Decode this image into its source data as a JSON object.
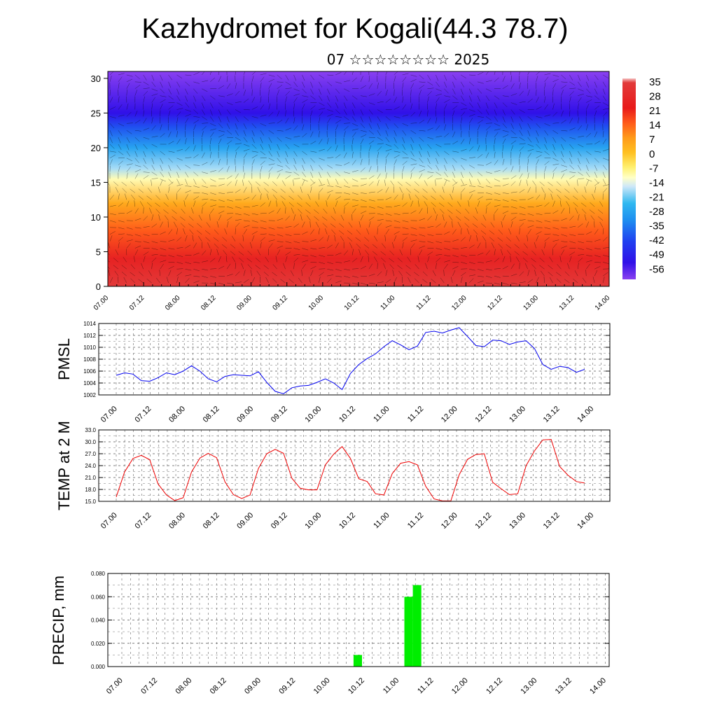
{
  "title": "Kazhydromet for Kogali(44.3 78.7)",
  "subtitle": "07 ☆☆☆☆☆☆☆☆ 2025",
  "time_labels": [
    "07.00",
    "07.12",
    "08.00",
    "08.12",
    "09.00",
    "09.12",
    "10.00",
    "10.12",
    "11.00",
    "11.12",
    "12.00",
    "12.12",
    "13.00",
    "13.12",
    "14.00"
  ],
  "chart_data": [
    {
      "type": "heatmap",
      "name": "cross-section",
      "x_labels_ref": "time_labels",
      "ylim": [
        0,
        31
      ],
      "y_ticks": [
        0,
        5,
        10,
        15,
        20,
        25,
        30
      ],
      "colorbar": {
        "labels": [
          "35",
          "28",
          "21",
          "14",
          "7",
          "0",
          "-7",
          "-14",
          "-21",
          "-28",
          "-35",
          "-42",
          "-49",
          "-56"
        ],
        "stops": [
          {
            "v": 35,
            "c": "#f4c2c2"
          },
          {
            "v": 33,
            "c": "#e23a3a"
          },
          {
            "v": 21,
            "c": "#e81a1a"
          },
          {
            "v": 14,
            "c": "#ff5a1a"
          },
          {
            "v": 7,
            "c": "#ff9a1a"
          },
          {
            "v": 0,
            "c": "#ffc020"
          },
          {
            "v": -7,
            "c": "#fff070"
          },
          {
            "v": -12,
            "c": "#ffffc8"
          },
          {
            "v": -16,
            "c": "#cfe8f8"
          },
          {
            "v": -24,
            "c": "#30b8f0"
          },
          {
            "v": -32,
            "c": "#1e8ef0"
          },
          {
            "v": -42,
            "c": "#2040f0"
          },
          {
            "v": -52,
            "c": "#3010e8"
          },
          {
            "v": -60,
            "c": "#8a40f0"
          }
        ]
      },
      "field_profile": [
        {
          "level": 0,
          "value": 33
        },
        {
          "level": 4,
          "value": 24
        },
        {
          "level": 8,
          "value": 14
        },
        {
          "level": 12,
          "value": 4
        },
        {
          "level": 15.5,
          "value": -11
        },
        {
          "level": 17,
          "value": -18
        },
        {
          "level": 20,
          "value": -28
        },
        {
          "level": 23,
          "value": -40
        },
        {
          "level": 25,
          "value": -52
        },
        {
          "level": 28,
          "value": -56
        },
        {
          "level": 31,
          "value": -60
        }
      ]
    },
    {
      "type": "line",
      "name": "pmsl",
      "ylabel": "PMSL",
      "ylim": [
        1002,
        1014
      ],
      "y_ticks": [
        1002,
        1004,
        1006,
        1008,
        1010,
        1012,
        1014
      ],
      "color": "#0000ee",
      "values": [
        1005.3,
        1005.7,
        1005.5,
        1004.4,
        1004.3,
        1004.9,
        1005.7,
        1005.4,
        1006.0,
        1006.9,
        1006.0,
        1004.7,
        1004.2,
        1005.1,
        1005.4,
        1005.3,
        1005.2,
        1005.9,
        1004.1,
        1002.6,
        1002.2,
        1003.2,
        1003.5,
        1003.6,
        1004.1,
        1004.7,
        1004.0,
        1002.9,
        1005.6,
        1007.1,
        1008.1,
        1008.9,
        1010.1,
        1011.1,
        1010.4,
        1009.6,
        1010.2,
        1012.5,
        1012.7,
        1012.4,
        1012.9,
        1013.3,
        1011.8,
        1010.3,
        1010.1,
        1011.2,
        1011.1,
        1010.5,
        1010.9,
        1011.1,
        1009.8,
        1007.1,
        1006.3,
        1006.8,
        1006.6,
        1005.8,
        1006.3
      ]
    },
    {
      "type": "line",
      "name": "temp2m",
      "ylabel": "TEMP at 2 M",
      "ylim": [
        15.0,
        33.0
      ],
      "y_ticks": [
        "15.0",
        "18.0",
        "21.0",
        "24.0",
        "27.0",
        "30.0",
        "33.0"
      ],
      "color": "#ee0000",
      "values": [
        16.1,
        22.4,
        25.8,
        26.6,
        25.5,
        19.4,
        16.6,
        15.2,
        15.9,
        22.4,
        25.9,
        27.1,
        26.0,
        19.9,
        16.7,
        15.7,
        16.6,
        23.3,
        27.0,
        28.1,
        27.1,
        20.8,
        18.3,
        17.9,
        17.9,
        24.2,
        26.9,
        28.8,
        25.8,
        20.7,
        20.0,
        16.9,
        16.6,
        22.0,
        24.6,
        25.0,
        24.2,
        18.8,
        15.6,
        15.1,
        15.1,
        21.7,
        25.6,
        26.8,
        27.0,
        19.8,
        18.2,
        16.7,
        16.9,
        24.0,
        27.7,
        30.5,
        30.6,
        23.8,
        21.6,
        20.0,
        19.6
      ]
    },
    {
      "type": "bar",
      "name": "precip",
      "ylabel": "PRECIP, mm",
      "ylim": [
        0,
        0.08
      ],
      "y_ticks": [
        "0.000",
        "0.020",
        "0.040",
        "0.060",
        "0.080"
      ],
      "color": "#00ee00",
      "bars": [
        {
          "i": 29,
          "value": 0.01
        },
        {
          "i": 35,
          "value": 0.06
        },
        {
          "i": 36,
          "value": 0.07
        }
      ]
    }
  ]
}
